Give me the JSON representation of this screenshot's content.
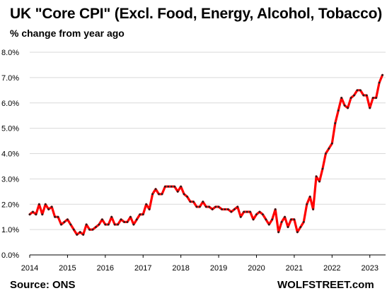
{
  "header": {
    "title": "UK \"Core CPI\" (Excl. Food, Energy, Alcohol, Tobacco)",
    "subtitle": "% change from year ago"
  },
  "footer": {
    "source": "Source: ONS",
    "brand": "WOLFSTREET.com"
  },
  "colors": {
    "line": "#ff0000",
    "marker": "#222222",
    "grid": "#d9d9d9",
    "axis": "#000000"
  },
  "chart_data": {
    "type": "line",
    "title": "UK \"Core CPI\" (Excl. Food, Energy, Alcohol, Tobacco)",
    "subtitle": "% change from year ago",
    "xlabel": "",
    "ylabel": "",
    "y_unit": "%",
    "ylim": [
      0,
      8
    ],
    "xlim": [
      "2014-01",
      "2023-06"
    ],
    "y_ticks": [
      "0.0%",
      "1.0%",
      "2.0%",
      "3.0%",
      "4.0%",
      "5.0%",
      "6.0%",
      "7.0%",
      "8.0%"
    ],
    "y_tick_values": [
      0,
      1,
      2,
      3,
      4,
      5,
      6,
      7,
      8
    ],
    "x_ticks": [
      "2014",
      "2015",
      "2016",
      "2017",
      "2018",
      "2019",
      "2020",
      "2021",
      "2022",
      "2023"
    ],
    "grid": "horizontal",
    "legend": "none",
    "series": [
      {
        "points": [
          [
            "2014-01",
            1.6
          ],
          [
            "2014-02",
            1.7
          ],
          [
            "2014-03",
            1.6
          ],
          [
            "2014-04",
            2.0
          ],
          [
            "2014-05",
            1.6
          ],
          [
            "2014-06",
            2.0
          ],
          [
            "2014-07",
            1.8
          ],
          [
            "2014-08",
            1.9
          ],
          [
            "2014-09",
            1.5
          ],
          [
            "2014-10",
            1.5
          ],
          [
            "2014-11",
            1.2
          ],
          [
            "2014-12",
            1.3
          ],
          [
            "2015-01",
            1.4
          ],
          [
            "2015-02",
            1.2
          ],
          [
            "2015-03",
            1.0
          ],
          [
            "2015-04",
            0.8
          ],
          [
            "2015-05",
            0.9
          ],
          [
            "2015-06",
            0.8
          ],
          [
            "2015-07",
            1.2
          ],
          [
            "2015-08",
            1.0
          ],
          [
            "2015-09",
            1.0
          ],
          [
            "2015-10",
            1.1
          ],
          [
            "2015-11",
            1.2
          ],
          [
            "2015-12",
            1.4
          ],
          [
            "2016-01",
            1.2
          ],
          [
            "2016-02",
            1.2
          ],
          [
            "2016-03",
            1.5
          ],
          [
            "2016-04",
            1.2
          ],
          [
            "2016-05",
            1.2
          ],
          [
            "2016-06",
            1.4
          ],
          [
            "2016-07",
            1.3
          ],
          [
            "2016-08",
            1.3
          ],
          [
            "2016-09",
            1.5
          ],
          [
            "2016-10",
            1.2
          ],
          [
            "2016-11",
            1.4
          ],
          [
            "2016-12",
            1.6
          ],
          [
            "2017-01",
            1.6
          ],
          [
            "2017-02",
            2.0
          ],
          [
            "2017-03",
            1.8
          ],
          [
            "2017-04",
            2.4
          ],
          [
            "2017-05",
            2.6
          ],
          [
            "2017-06",
            2.4
          ],
          [
            "2017-07",
            2.4
          ],
          [
            "2017-08",
            2.7
          ],
          [
            "2017-09",
            2.7
          ],
          [
            "2017-10",
            2.7
          ],
          [
            "2017-11",
            2.7
          ],
          [
            "2017-12",
            2.5
          ],
          [
            "2018-01",
            2.7
          ],
          [
            "2018-02",
            2.4
          ],
          [
            "2018-03",
            2.3
          ],
          [
            "2018-04",
            2.1
          ],
          [
            "2018-05",
            2.1
          ],
          [
            "2018-06",
            1.9
          ],
          [
            "2018-07",
            1.9
          ],
          [
            "2018-08",
            2.1
          ],
          [
            "2018-09",
            1.9
          ],
          [
            "2018-10",
            1.9
          ],
          [
            "2018-11",
            1.8
          ],
          [
            "2018-12",
            1.9
          ],
          [
            "2019-01",
            1.9
          ],
          [
            "2019-02",
            1.8
          ],
          [
            "2019-03",
            1.8
          ],
          [
            "2019-04",
            1.8
          ],
          [
            "2019-05",
            1.7
          ],
          [
            "2019-06",
            1.8
          ],
          [
            "2019-07",
            1.9
          ],
          [
            "2019-08",
            1.5
          ],
          [
            "2019-09",
            1.7
          ],
          [
            "2019-10",
            1.7
          ],
          [
            "2019-11",
            1.7
          ],
          [
            "2019-12",
            1.4
          ],
          [
            "2020-01",
            1.6
          ],
          [
            "2020-02",
            1.7
          ],
          [
            "2020-03",
            1.6
          ],
          [
            "2020-04",
            1.4
          ],
          [
            "2020-05",
            1.2
          ],
          [
            "2020-06",
            1.4
          ],
          [
            "2020-07",
            1.8
          ],
          [
            "2020-08",
            0.9
          ],
          [
            "2020-09",
            1.3
          ],
          [
            "2020-10",
            1.5
          ],
          [
            "2020-11",
            1.1
          ],
          [
            "2020-12",
            1.4
          ],
          [
            "2021-01",
            1.4
          ],
          [
            "2021-02",
            0.9
          ],
          [
            "2021-03",
            1.1
          ],
          [
            "2021-04",
            1.3
          ],
          [
            "2021-05",
            2.0
          ],
          [
            "2021-06",
            2.3
          ],
          [
            "2021-07",
            1.8
          ],
          [
            "2021-08",
            3.1
          ],
          [
            "2021-09",
            2.9
          ],
          [
            "2021-10",
            3.4
          ],
          [
            "2021-11",
            4.0
          ],
          [
            "2021-12",
            4.2
          ],
          [
            "2022-01",
            4.4
          ],
          [
            "2022-02",
            5.2
          ],
          [
            "2022-03",
            5.7
          ],
          [
            "2022-04",
            6.2
          ],
          [
            "2022-05",
            5.9
          ],
          [
            "2022-06",
            5.8
          ],
          [
            "2022-07",
            6.2
          ],
          [
            "2022-08",
            6.3
          ],
          [
            "2022-09",
            6.5
          ],
          [
            "2022-10",
            6.5
          ],
          [
            "2022-11",
            6.3
          ],
          [
            "2022-12",
            6.3
          ],
          [
            "2023-01",
            5.8
          ],
          [
            "2023-02",
            6.2
          ],
          [
            "2023-03",
            6.2
          ],
          [
            "2023-04",
            6.8
          ],
          [
            "2023-05",
            7.1
          ]
        ]
      }
    ]
  }
}
